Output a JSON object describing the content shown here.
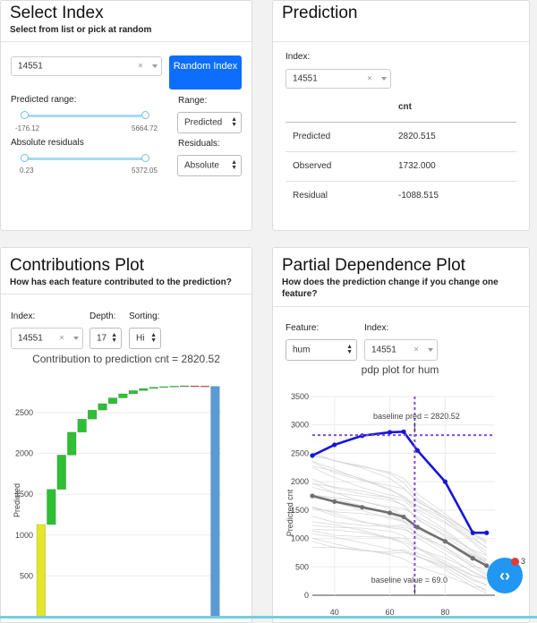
{
  "select_index": {
    "title": "Select Index",
    "subtitle": "Select from list or pick at random",
    "index_value": "14551",
    "clear_symbol": "×",
    "random_button": "Random Index",
    "predicted_range_label": "Predicted range:",
    "predicted_min": "-176.12",
    "predicted_max": "5664.72",
    "range_label": "Range:",
    "range_value": "Predicted",
    "abs_residuals_label": "Absolute residuals",
    "abs_min": "0.23",
    "abs_max": "5372.05",
    "residuals_label": "Residuals:",
    "residuals_value": "Absolute"
  },
  "prediction": {
    "title": "Prediction",
    "index_label": "Index:",
    "index_value": "14551",
    "clear_symbol": "×",
    "column_header": "cnt",
    "rows": [
      {
        "label": "Predicted",
        "value": "2820.515"
      },
      {
        "label": "Observed",
        "value": "1732.000"
      },
      {
        "label": "Residual",
        "value": "-1088.515"
      }
    ]
  },
  "contributions": {
    "title": "Contributions Plot",
    "subtitle": "How has each feature contributed to the prediction?",
    "index_label": "Index:",
    "index_value": "14551",
    "clear_symbol": "×",
    "depth_label": "Depth:",
    "depth_value": "17",
    "sorting_label": "Sorting:",
    "sorting_value": "Hi",
    "plot_title": "Contribution to prediction cnt = 2820.52",
    "ylabel": "Predicted",
    "yticks": [
      "500",
      "1000",
      "1500",
      "2000",
      "2500"
    ]
  },
  "pdp": {
    "title": "Partial Dependence Plot",
    "subtitle": "How does the prediction change if you change one feature?",
    "feature_label": "Feature:",
    "feature_value": "hum",
    "index_label": "Index:",
    "index_value": "14551",
    "clear_symbol": "×",
    "plot_title": "pdp plot for hum",
    "ylabel": "Predicted cnt",
    "yticks": [
      "0",
      "500",
      "1000",
      "1500",
      "2000",
      "2500",
      "3000",
      "3500"
    ],
    "xticks": [
      "40",
      "60",
      "80"
    ],
    "baseline_pred_annotation": "baseline pred = 2820.52",
    "baseline_value_annotation": "baseline value = 69.0"
  },
  "chart_data": [
    {
      "type": "bar",
      "title": "Contribution to prediction cnt = 2820.52",
      "ylabel": "Predicted",
      "ylim": [
        0,
        2850
      ],
      "bars": [
        {
          "start": 0,
          "end": 1130,
          "color": "#e5e52a"
        },
        {
          "start": 1130,
          "end": 1560,
          "color": "#2ebf35"
        },
        {
          "start": 1560,
          "end": 1980,
          "color": "#2ebf35"
        },
        {
          "start": 1980,
          "end": 2260,
          "color": "#2ebf35"
        },
        {
          "start": 2260,
          "end": 2420,
          "color": "#2ebf35"
        },
        {
          "start": 2420,
          "end": 2530,
          "color": "#2ebf35"
        },
        {
          "start": 2530,
          "end": 2610,
          "color": "#2ebf35"
        },
        {
          "start": 2610,
          "end": 2680,
          "color": "#2ebf35"
        },
        {
          "start": 2680,
          "end": 2730,
          "color": "#2ebf35"
        },
        {
          "start": 2730,
          "end": 2770,
          "color": "#2ebf35"
        },
        {
          "start": 2770,
          "end": 2795,
          "color": "#2ebf35"
        },
        {
          "start": 2795,
          "end": 2810,
          "color": "#2ebf35"
        },
        {
          "start": 2810,
          "end": 2818,
          "color": "#2ebf35"
        },
        {
          "start": 2818,
          "end": 2824,
          "color": "#2ebf35"
        },
        {
          "start": 2824,
          "end": 2828,
          "color": "#2ebf35"
        },
        {
          "start": 2828,
          "end": 2826,
          "color": "#e34a4a"
        },
        {
          "start": 2826,
          "end": 2821,
          "color": "#e34a4a"
        },
        {
          "start": 0,
          "end": 2820.52,
          "color": "#5b9bd5"
        }
      ]
    },
    {
      "type": "line",
      "title": "pdp plot for hum",
      "ylabel": "Predicted cnt",
      "xlim": [
        32,
        98
      ],
      "ylim": [
        0,
        3500
      ],
      "x": [
        30,
        40,
        50,
        60,
        65,
        70,
        80,
        90,
        95
      ],
      "series": [
        {
          "name": "",
          "color": "#1616d6",
          "values": [
            2460,
            2650,
            2810,
            2870,
            2880,
            2550,
            2000,
            1100,
            1100
          ]
        },
        {
          "name": "",
          "color": "#707070",
          "values": [
            1750,
            1650,
            1550,
            1450,
            1380,
            1200,
            950,
            650,
            520
          ]
        }
      ],
      "baseline_pred": 2820.52,
      "baseline_value": 69.0
    }
  ]
}
